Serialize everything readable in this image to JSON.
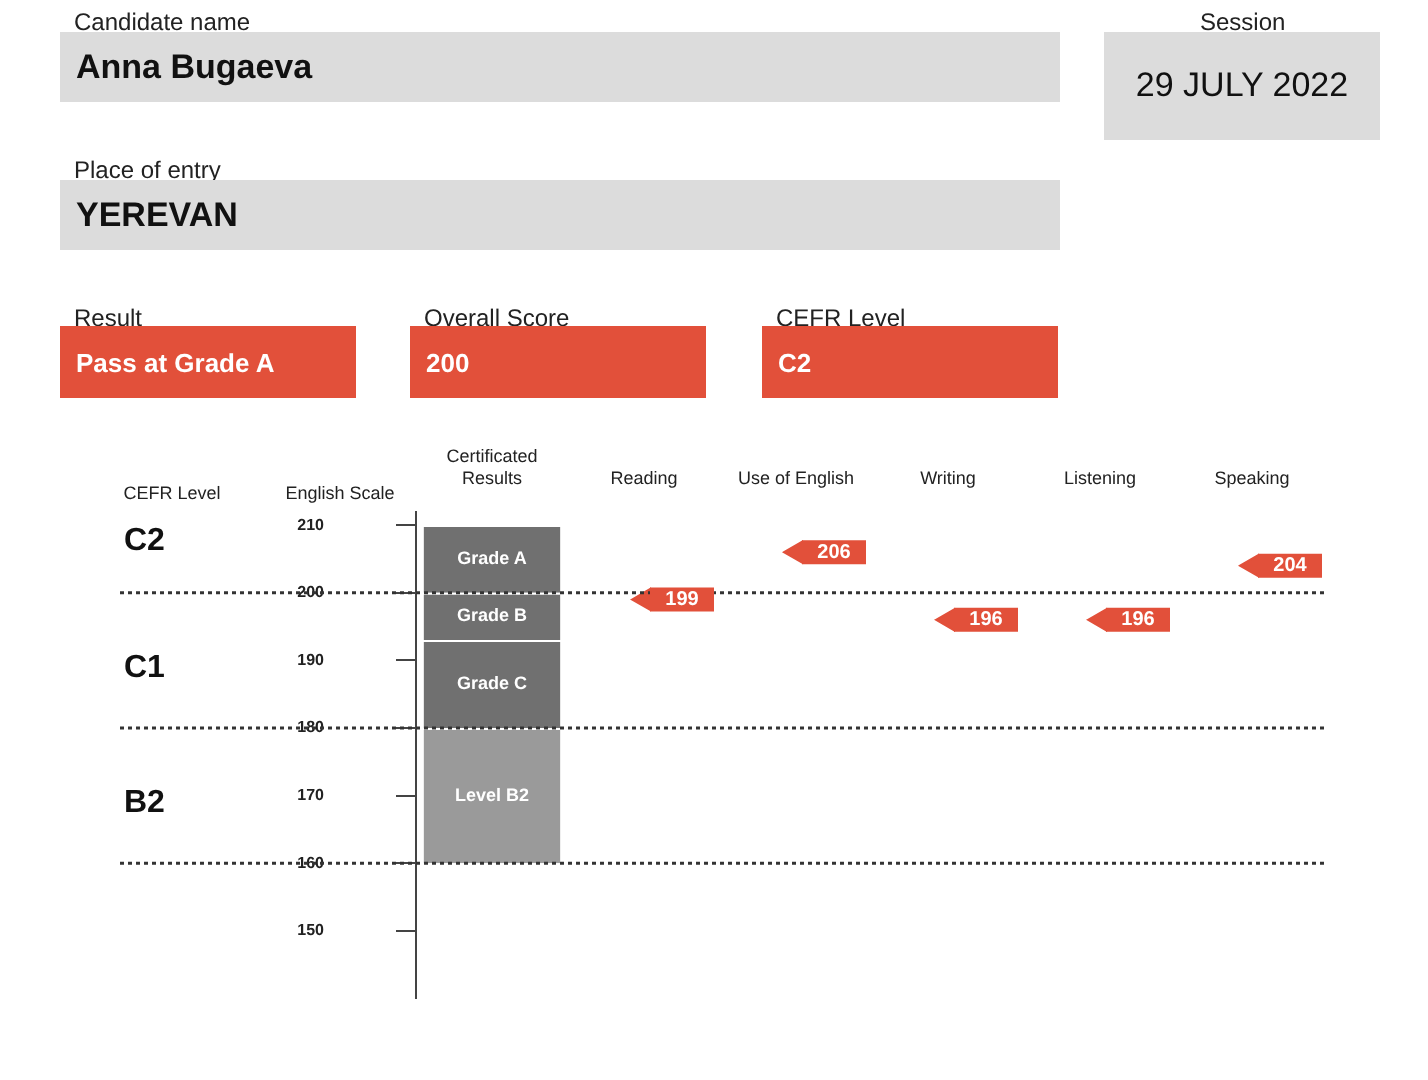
{
  "chart_data": {
    "type": "scatter",
    "categories": [
      "Certificated Results",
      "Reading",
      "Use of English",
      "Writing",
      "Listening",
      "Speaking"
    ],
    "ylabel": "English Scale",
    "ylim": [
      140,
      212
    ],
    "yticks": [
      150,
      160,
      170,
      180,
      190,
      200,
      210
    ],
    "grid": false,
    "legend": false,
    "marker": "triangle",
    "series": [
      {
        "name": "Grade A",
        "type": "bar",
        "color": "#707070",
        "values": [
          10,
          null,
          null,
          null,
          null,
          null
        ],
        "base": [
          200,
          null,
          null,
          null,
          null,
          null
        ]
      },
      {
        "name": "Grade B",
        "type": "bar",
        "color": "#707070",
        "values": [
          7,
          null,
          null,
          null,
          null,
          null
        ],
        "base": [
          193,
          null,
          null,
          null,
          null,
          null
        ]
      },
      {
        "name": "Grade C",
        "type": "bar",
        "color": "#707070",
        "values": [
          13,
          null,
          null,
          null,
          null,
          null
        ],
        "base": [
          180,
          null,
          null,
          null,
          null,
          null
        ]
      },
      {
        "name": "Level B2",
        "type": "bar",
        "color": "#9a9a9a",
        "values": [
          20,
          null,
          null,
          null,
          null,
          null
        ],
        "base": [
          160,
          null,
          null,
          null,
          null,
          null
        ]
      },
      {
        "color": "#e2503a",
        "x": [
          "Reading",
          "Use of English",
          "Writing",
          "Listening",
          "Speaking"
        ],
        "values": [
          199,
          206,
          196,
          196,
          204
        ],
        "value_labels": [
          "199",
          "206",
          "196",
          "196",
          "204"
        ]
      }
    ],
    "ref_lines": [
      {
        "axis": "y",
        "value": 200,
        "color": "#333333",
        "line_style": "dotted"
      },
      {
        "axis": "y",
        "value": 180,
        "color": "#333333",
        "line_style": "dotted"
      },
      {
        "axis": "y",
        "value": 160,
        "color": "#333333",
        "line_style": "dotted"
      }
    ],
    "annotations": [
      "Candidate name",
      "Anna Bugaeva",
      "Session",
      "29 JULY 2022",
      "Place of entry",
      "YEREVAN",
      "Result",
      "Pass at Grade A",
      "Overall Score",
      "200",
      "CEFR Level",
      "C2",
      "CEFR Level",
      "C2",
      "C1",
      "B2"
    ]
  }
}
